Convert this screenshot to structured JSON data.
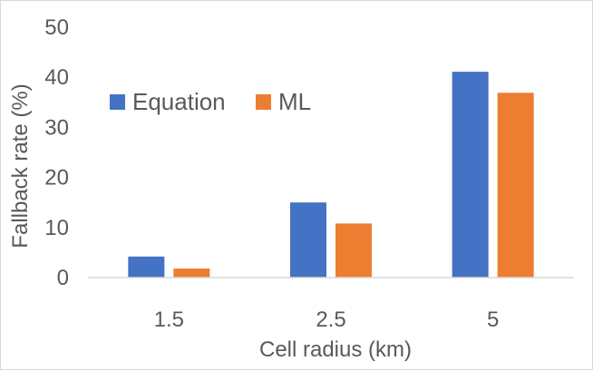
{
  "chart_data": {
    "type": "bar",
    "title": "",
    "xlabel": "Cell radius (km)",
    "ylabel": "Fallback rate (%)",
    "categories": [
      "1.5",
      "2.5",
      "5"
    ],
    "series": [
      {
        "name": "Equation",
        "color": "#4472c4",
        "values": [
          4.2,
          15.0,
          41.1
        ]
      },
      {
        "name": "ML",
        "color": "#ed7d31",
        "values": [
          1.8,
          10.8,
          36.9
        ]
      }
    ],
    "ylim": [
      0,
      50
    ],
    "yticks": [
      0,
      10,
      20,
      30,
      40,
      50
    ],
    "grid": false,
    "legend_position": "top-left"
  }
}
